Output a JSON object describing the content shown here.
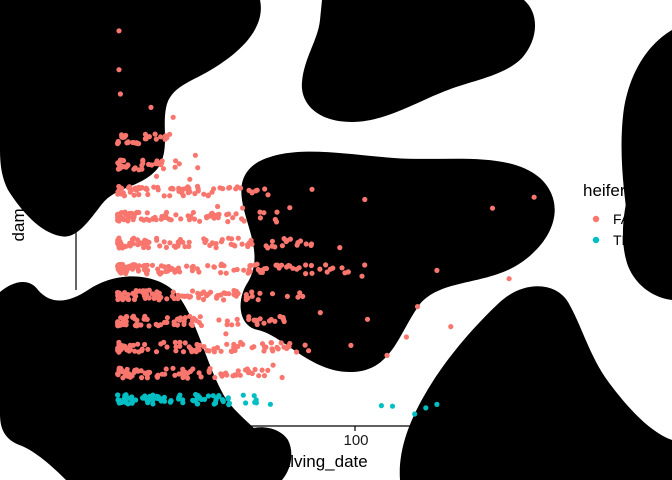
{
  "chart_data": {
    "type": "scatter",
    "xlabel": "calving_date",
    "ylabel": "dam_age",
    "x_ticks": [
      100
    ],
    "xlim": [
      -15,
      155
    ],
    "ylim": [
      1.2,
      16.8
    ],
    "grid": false,
    "legend": {
      "title": "heifer",
      "position": "right",
      "entries": [
        {
          "label": "FALSE",
          "color": "#F8766D"
        },
        {
          "label": "TRUE",
          "color": "#00BFC4"
        }
      ]
    },
    "series": [
      {
        "name": "FALSE",
        "color": "#F8766D",
        "jitter_y": 0.18,
        "points": [
          {
            "x": 0.5,
            "y": 16.2
          },
          {
            "x": 1.5,
            "y": 12.1
          },
          {
            "x": 6,
            "y": 11.9
          },
          {
            "x": 12,
            "y": 13.2
          },
          {
            "x": 20,
            "y": 12.8
          },
          {
            "x": 14,
            "y": 10.6
          },
          {
            "x": 26,
            "y": 10.5
          },
          {
            "x": 28,
            "y": 11.3
          },
          {
            "x": 36,
            "y": 9.4
          },
          {
            "x": 45,
            "y": 9.4
          },
          {
            "x": 62,
            "y": 9.3
          },
          {
            "x": 70,
            "y": 10.0
          },
          {
            "x": 89,
            "y": 9.6
          },
          {
            "x": 135,
            "y": 9.4
          },
          {
            "x": 150,
            "y": 9.8
          },
          {
            "x": 80,
            "y": 7.8
          },
          {
            "x": 115,
            "y": 6.9
          },
          {
            "x": 141,
            "y": 6.6
          },
          {
            "x": 70,
            "y": 6.9
          },
          {
            "x": 88,
            "y": 6.7
          },
          {
            "x": 108,
            "y": 5.6
          },
          {
            "x": 120,
            "y": 4.8
          },
          {
            "x": 97,
            "y": 3.7
          },
          {
            "x": 84,
            "y": 4.0
          },
          {
            "x": 60,
            "y": 4.9
          },
          {
            "x": 73,
            "y": 5.3
          },
          {
            "x": 104,
            "y": 4.3
          },
          {
            "x": 90,
            "y": 5.1
          },
          {
            "x": 56,
            "y": 3.3
          },
          {
            "x": 39,
            "y": 4.6
          },
          {
            "x": 0.5,
            "y": 14.6
          },
          {
            "x": 1,
            "y": 13.7
          }
        ]
      },
      {
        "name": "TRUE",
        "color": "#00BFC4",
        "jitter_y": 0.15,
        "points": [
          {
            "x": 3,
            "y": 2.2
          },
          {
            "x": 9,
            "y": 2.1
          },
          {
            "x": 29,
            "y": 2.1
          },
          {
            "x": 40,
            "y": 1.85
          },
          {
            "x": 55,
            "y": 1.75
          },
          {
            "x": 95,
            "y": 1.7
          },
          {
            "x": 99,
            "y": 1.7
          },
          {
            "x": 111,
            "y": 1.7
          },
          {
            "x": 107,
            "y": 1.5
          },
          {
            "x": 115,
            "y": 1.8
          }
        ]
      }
    ],
    "density": {
      "FALSE": {
        "dam_age_levels": [
          3,
          4,
          5,
          6,
          7,
          8,
          9,
          10,
          11,
          12
        ],
        "x_extent_by_level": [
          60,
          70,
          60,
          75,
          90,
          70,
          60,
          55,
          30,
          20
        ]
      },
      "TRUE": {
        "dam_age_levels": [
          2
        ],
        "x_extent_by_level": [
          50
        ]
      }
    }
  }
}
